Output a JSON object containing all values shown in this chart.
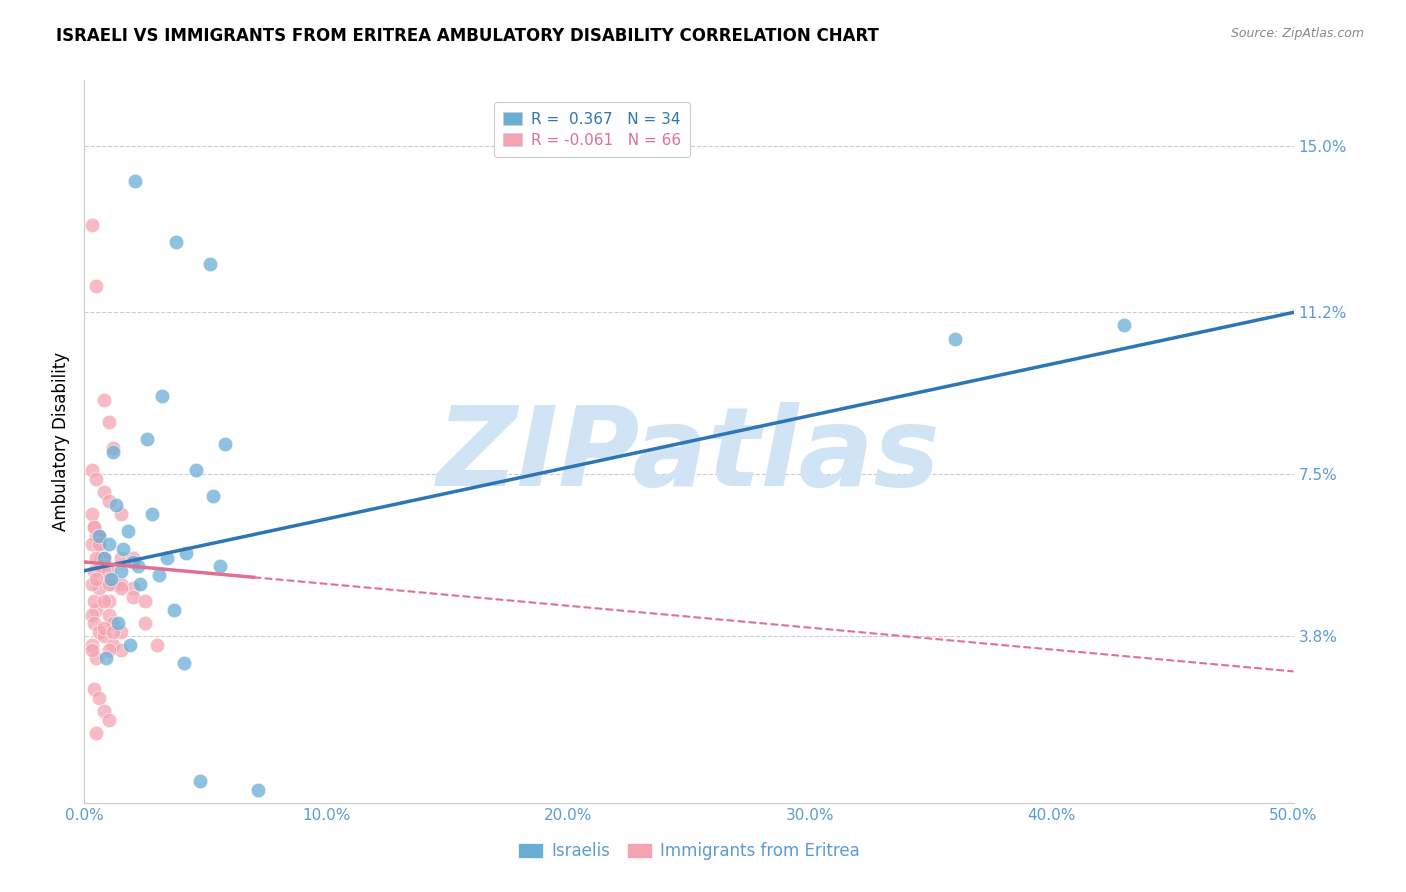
{
  "title": "ISRAELI VS IMMIGRANTS FROM ERITREA AMBULATORY DISABILITY CORRELATION CHART",
  "source": "Source: ZipAtlas.com",
  "ylabel": "Ambulatory Disability",
  "xlim": [
    0.0,
    50.0
  ],
  "ylim": [
    0.0,
    16.5
  ],
  "yticks": [
    3.8,
    7.5,
    11.2,
    15.0
  ],
  "xticks": [
    0.0,
    10.0,
    20.0,
    30.0,
    40.0,
    50.0
  ],
  "xtick_labels": [
    "0.0%",
    "10.0%",
    "20.0%",
    "30.0%",
    "40.0%",
    "50.0%"
  ],
  "ytick_labels": [
    "3.8%",
    "7.5%",
    "11.2%",
    "15.0%"
  ],
  "legend_label1": "Israelis",
  "legend_label2": "Immigrants from Eritrea",
  "blue_color": "#6AAED6",
  "pink_color": "#F4A4B0",
  "blue_line_color": "#2E75B6",
  "pink_line_color": "#E07090",
  "watermark": "ZIPatlas",
  "watermark_color": "#D0E4F5",
  "blue_scatter_x": [
    2.1,
    3.8,
    5.2,
    5.8,
    3.2,
    1.2,
    2.6,
    1.3,
    1.8,
    0.6,
    1.0,
    0.8,
    2.0,
    1.5,
    1.1,
    2.8,
    5.3,
    2.3,
    3.1,
    4.6,
    1.6,
    2.2,
    4.2,
    36.0,
    43.0,
    1.4,
    1.9,
    0.9,
    3.4,
    5.6,
    3.7,
    7.2,
    4.8,
    4.1
  ],
  "blue_scatter_y": [
    14.2,
    12.8,
    12.3,
    8.2,
    9.3,
    8.0,
    8.3,
    6.8,
    6.2,
    6.1,
    5.9,
    5.6,
    5.5,
    5.3,
    5.1,
    6.6,
    7.0,
    5.0,
    5.2,
    7.6,
    5.8,
    5.4,
    5.7,
    10.6,
    10.9,
    4.1,
    3.6,
    3.3,
    5.6,
    5.4,
    4.4,
    0.3,
    0.5,
    3.2
  ],
  "pink_scatter_x": [
    0.3,
    0.5,
    0.8,
    1.0,
    1.2,
    0.3,
    0.5,
    0.8,
    1.0,
    0.3,
    0.4,
    0.5,
    0.6,
    0.7,
    0.8,
    0.9,
    1.0,
    1.1,
    1.2,
    1.5,
    2.0,
    0.4,
    0.6,
    0.3,
    0.5,
    0.7,
    0.8,
    1.0,
    1.5,
    2.0,
    2.5,
    1.0,
    0.5,
    0.3,
    0.4,
    0.6,
    0.8,
    1.2,
    1.5,
    0.3,
    0.5,
    0.4,
    0.6,
    0.8,
    1.0,
    1.2,
    1.5,
    0.4,
    0.6,
    0.8,
    1.0,
    0.5,
    0.3,
    0.4,
    1.0,
    1.5,
    0.5,
    1.0,
    1.5,
    2.5,
    3.0,
    0.3,
    2.0,
    0.8,
    1.2,
    0.6
  ],
  "pink_scatter_y": [
    13.2,
    11.8,
    9.2,
    8.7,
    8.1,
    7.6,
    7.4,
    7.1,
    6.9,
    6.6,
    6.3,
    6.1,
    5.9,
    5.6,
    5.6,
    5.4,
    5.3,
    5.1,
    5.0,
    5.0,
    4.9,
    6.3,
    6.1,
    5.9,
    5.6,
    5.4,
    5.3,
    5.1,
    4.9,
    4.7,
    4.6,
    4.6,
    4.4,
    4.3,
    4.1,
    3.9,
    3.8,
    3.6,
    3.5,
    3.6,
    3.3,
    4.6,
    4.9,
    4.6,
    4.3,
    4.1,
    3.9,
    2.6,
    2.4,
    2.1,
    1.9,
    1.6,
    5.0,
    5.3,
    3.5,
    6.6,
    5.1,
    5.0,
    5.6,
    4.1,
    3.6,
    3.5,
    5.6,
    4.0,
    3.9,
    5.9
  ],
  "blue_line_x0": 0.0,
  "blue_line_y0": 5.3,
  "blue_line_x1": 50.0,
  "blue_line_y1": 11.2,
  "pink_solid_x0": 0.0,
  "pink_solid_y0": 5.5,
  "pink_solid_x1": 7.0,
  "pink_solid_y1": 5.15,
  "pink_dash_x0": 7.0,
  "pink_dash_y0": 5.15,
  "pink_dash_x1": 50.0,
  "pink_dash_y1": 3.0
}
